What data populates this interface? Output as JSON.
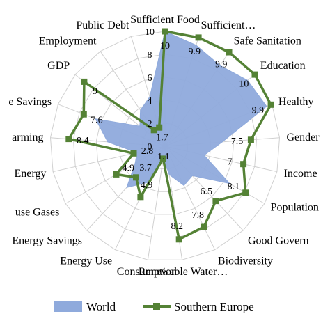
{
  "chart_data": {
    "type": "radar",
    "title": "",
    "categories": [
      "Sufficient Food",
      "Sufficient…",
      "Safe Sanitation",
      "Education",
      "Healthy",
      "Gender",
      "Income",
      "Population",
      "Good Govern",
      "Biodiversity",
      "Renewable Water…",
      "Consumption",
      "Energy Use",
      "Energy Savings",
      "use Gases",
      "Energy",
      "arming",
      "e Savings",
      "GDP",
      "Employment",
      "Public Debt"
    ],
    "rlim": [
      0,
      10
    ],
    "ticks": [
      "0",
      "2",
      "4",
      "6",
      "8",
      "10"
    ],
    "grid": true,
    "legend_position": "bottom",
    "series": [
      {
        "name": "World",
        "color": "#8faadc",
        "fill": true,
        "values": [
          10,
          9.2,
          8.5,
          9.2,
          9.5,
          5.0,
          3.5,
          6.5,
          3.5,
          3.8,
          2.5,
          1.0,
          3.5,
          4.9,
          3.0,
          2.5,
          5.0,
          6.5,
          2.8,
          3.8,
          4.5
        ],
        "labels": [
          "",
          "",
          "",
          "",
          "",
          "",
          "",
          "",
          "",
          "",
          "",
          "",
          "",
          "",
          "",
          "",
          "",
          "",
          "",
          "",
          ""
        ]
      },
      {
        "name": "Southern Europe",
        "color": "#548235",
        "fill": false,
        "values": [
          10,
          9.9,
          9.9,
          10,
          9.9,
          7.5,
          7,
          8.1,
          6.5,
          7.8,
          8.2,
          1.1,
          4.9,
          3.7,
          4.9,
          2.8,
          8.4,
          7.6,
          9,
          1.7,
          1.7
        ],
        "labels": [
          "10",
          "9.9",
          "9.9",
          "10",
          "9.9",
          "7.5",
          "7",
          "8.1",
          "6.5",
          "7.8",
          "8.2",
          "1.1",
          "4.9",
          "3.7",
          "4.9",
          "2.8",
          "8.4",
          "7.6",
          "9",
          "",
          "1.7"
        ]
      }
    ]
  }
}
